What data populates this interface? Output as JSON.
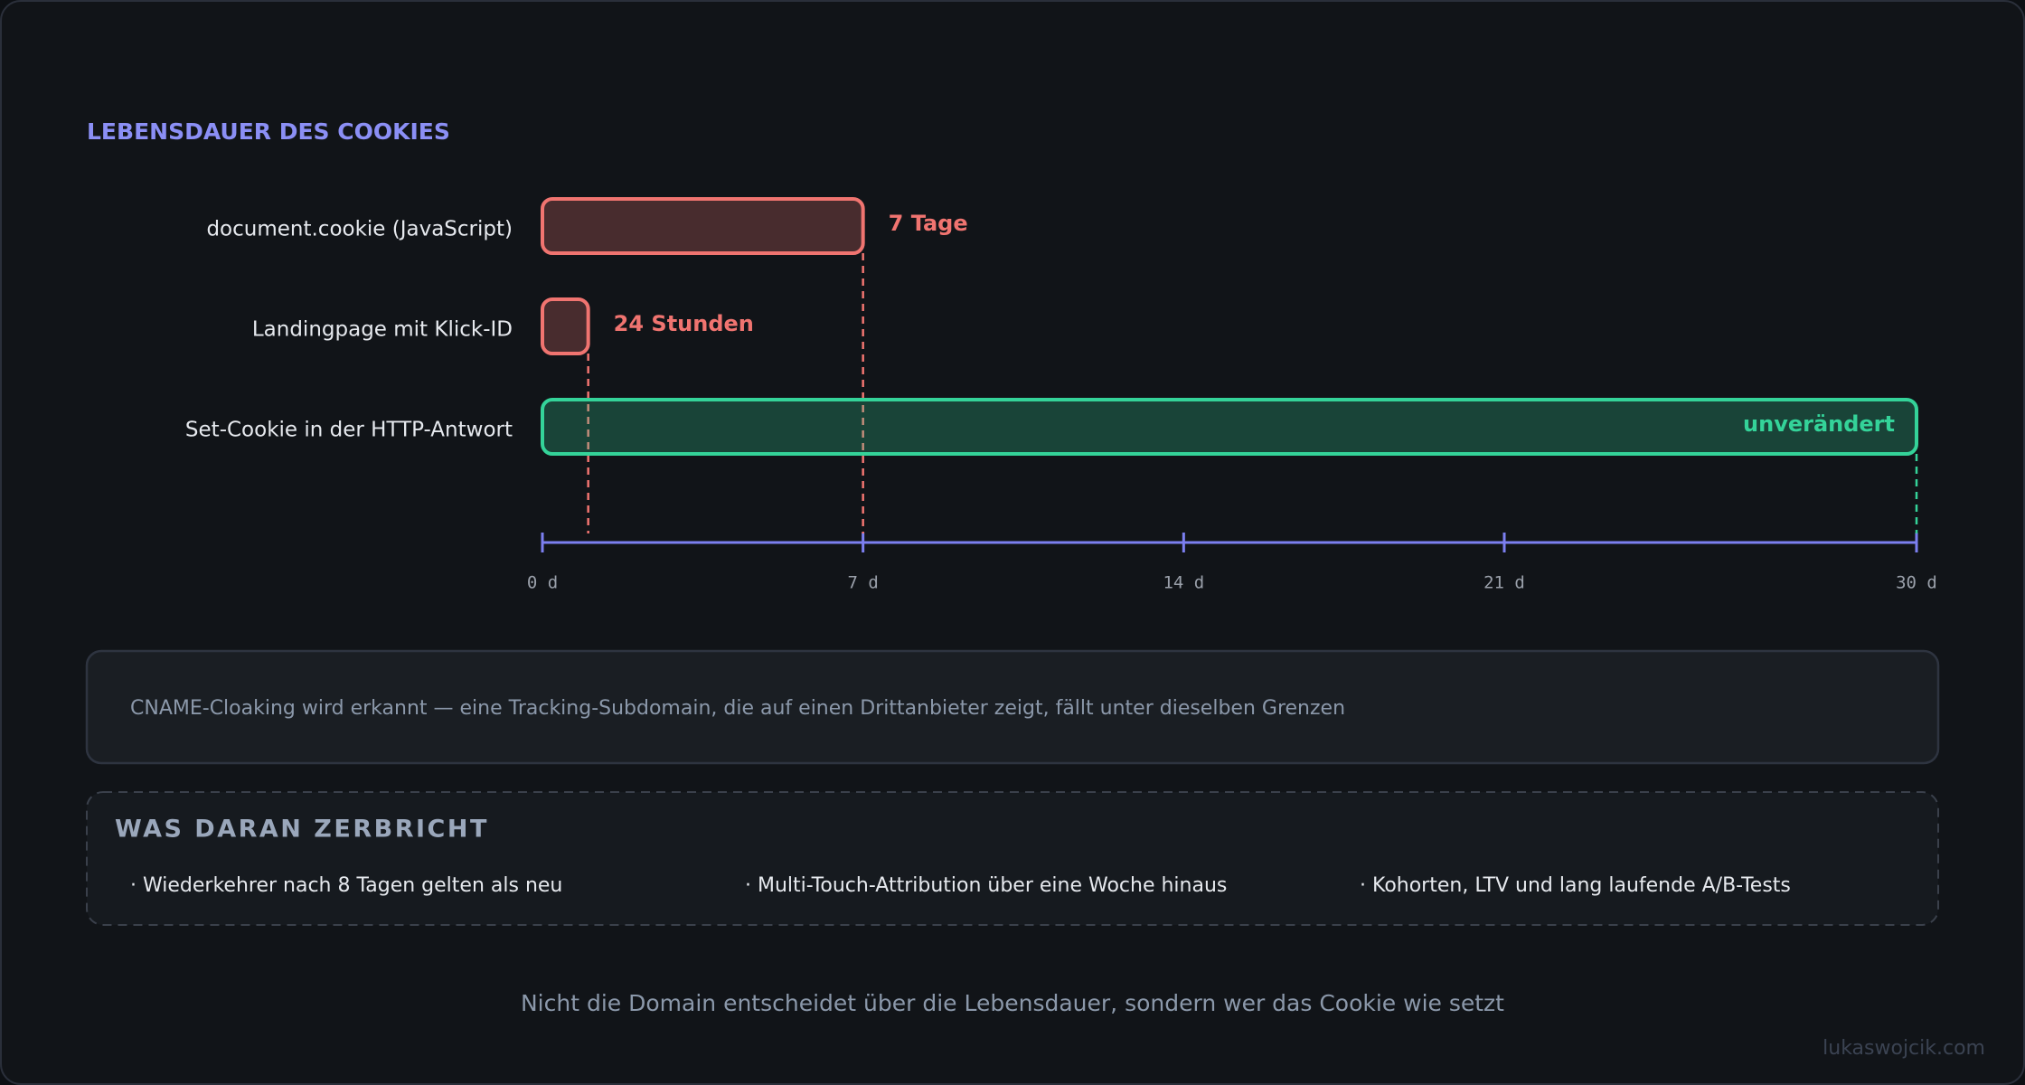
{
  "chart_data": {
    "type": "hbar",
    "title": "LEBENSDAUER DES COOKIES",
    "categories": [
      "document.cookie (JavaScript)",
      "Landingpage mit Klick-ID",
      "Set-Cookie in der HTTP-Antwort"
    ],
    "values": [
      7,
      1,
      30
    ],
    "value_labels": [
      "7 Tage",
      "24 Stunden",
      "unverändert"
    ],
    "colors": [
      "#f07470",
      "#f07470",
      "#34d399"
    ],
    "xlim": [
      0,
      30
    ],
    "xticks": [
      {
        "value": 0,
        "label": "0 d"
      },
      {
        "value": 7,
        "label": "7 d"
      },
      {
        "value": 14,
        "label": "14 d"
      },
      {
        "value": 21,
        "label": "21 d"
      },
      {
        "value": 30,
        "label": "30 d"
      }
    ],
    "axis_color": "#7c7ff0"
  },
  "note": "CNAME-Cloaking wird erkannt — eine Tracking-Subdomain, die auf einen Drittanbieter zeigt, fällt unter dieselben Grenzen",
  "breaks": {
    "title": "WAS DARAN ZERBRICHT",
    "items": [
      "· Wiederkehrer nach 8 Tagen gelten als neu",
      "· Multi-Touch-Attribution über eine Woche hinaus",
      "· Kohorten, LTV und lang laufende A/B-Tests"
    ]
  },
  "footer": "Nicht die Domain entscheidet über die Lebensdauer, sondern wer das Cookie wie setzt",
  "credit": "lukaswojcik.com"
}
